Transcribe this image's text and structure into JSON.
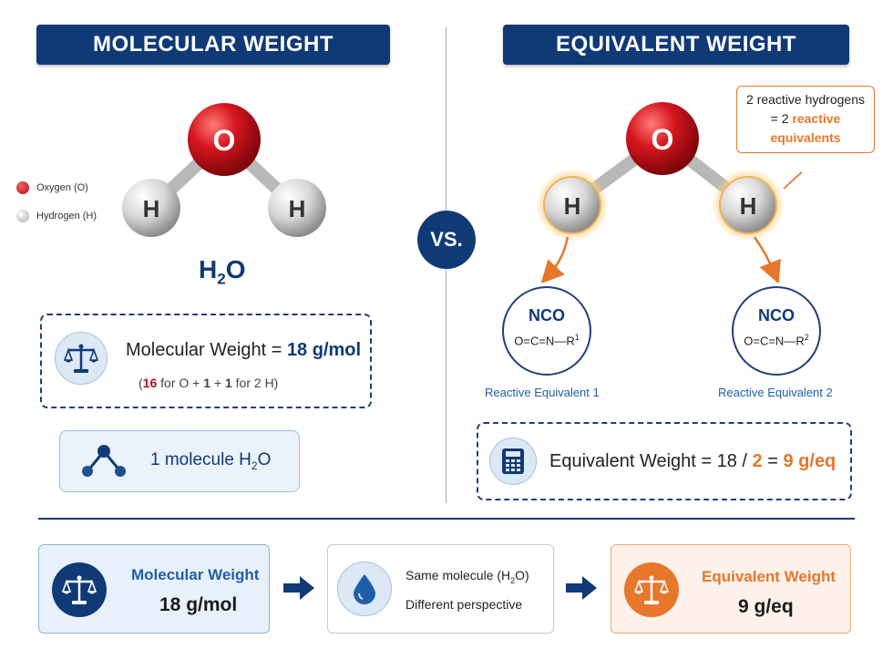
{
  "left_header": "MOLECULAR WEIGHT",
  "right_header": "EQUIVALENT WEIGHT",
  "legend": [
    {
      "label": "Oxygen (O)",
      "color": "#c0121a"
    },
    {
      "label": "Hydrogen (H)",
      "color": "#d4d4d4"
    }
  ],
  "atoms": {
    "oxygen": "O",
    "hydrogen": "H"
  },
  "formula": {
    "main": "H",
    "sub": "2",
    "tail": "O"
  },
  "mw_box": {
    "label": "Molecular Weight = ",
    "value": "18 g/mol",
    "detail": {
      "open": "(",
      "o": "16",
      "for_o": " for O + ",
      "h1": "1",
      "plus": " + ",
      "h2": "1",
      "for_h": " for 2 H)"
    }
  },
  "molecule_box": {
    "text": "1 molecule H",
    "sub": "2",
    "tail": "O"
  },
  "vs": "VS.",
  "callout": {
    "line1": "2 reactive hydrogens",
    "line2_prefix": "= 2 ",
    "line2_emph": "reactive",
    "line3": "equivalents"
  },
  "nco": [
    {
      "title": "NCO",
      "formula": "O=C=N—R",
      "sup": "1",
      "label": "Reactive Equivalent 1"
    },
    {
      "title": "NCO",
      "formula": "O=C=N—R",
      "sup": "2",
      "label": "Reactive Equivalent 2"
    }
  ],
  "eq_box": {
    "label": "Equivalent Weight = 18 / ",
    "divisor": "2",
    "eq": " = ",
    "value": "9 g/eq"
  },
  "summary": [
    {
      "title": "Molecular Weight",
      "value": "18 g/mol"
    },
    {
      "line1": "Same molecule (H",
      "line1_sub": "2",
      "line1_tail": "O)",
      "line2": "Different perspective"
    },
    {
      "title": "Equivalent Weight",
      "value": "9 g/eq"
    }
  ],
  "colors": {
    "navy": "#103a75",
    "orange": "#e8762b",
    "red": "#b3121b"
  }
}
